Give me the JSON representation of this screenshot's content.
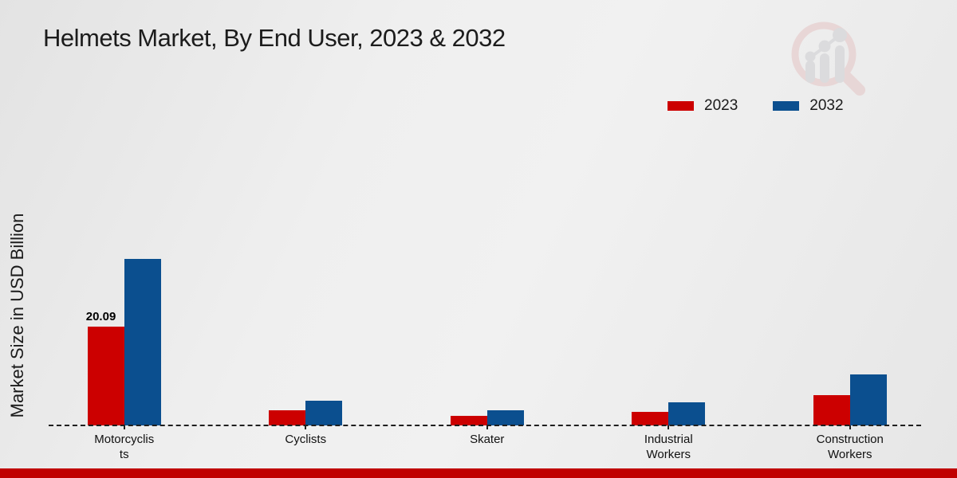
{
  "title": "Helmets Market, By End User, 2023 & 2032",
  "y_axis_label": "Market Size in USD Billion",
  "legend": {
    "items": [
      {
        "label": "2023",
        "color": "#cc0000"
      },
      {
        "label": "2032",
        "color": "#0b4f8f"
      }
    ]
  },
  "watermark": {
    "name": "magnifier-bar-chart-logo",
    "ring_color": "#e3bcbc",
    "bar_color": "#c7c7cb"
  },
  "footer": {
    "color": "#c00000"
  },
  "chart_data": {
    "type": "bar",
    "title": "Helmets Market, By End User, 2023 & 2032",
    "xlabel": "",
    "ylabel": "Market Size in USD Billion",
    "ylim": [
      0,
      36
    ],
    "grid": false,
    "legend_position": "top-right",
    "baseline_style": "dashed",
    "categories": [
      "Motorcyclists",
      "Cyclists",
      "Skater",
      "Industrial Workers",
      "Construction Workers"
    ],
    "category_display": [
      "Motorcyclis\nts",
      "Cyclists",
      "Skater",
      "Industrial\nWorkers",
      "Construction\nWorkers"
    ],
    "series": [
      {
        "name": "2023",
        "color": "#cc0000",
        "values": [
          20.09,
          3.0,
          1.9,
          2.8,
          6.1
        ],
        "bar_labels": [
          "20.09",
          "",
          "",
          "",
          ""
        ]
      },
      {
        "name": "2032",
        "color": "#0b4f8f",
        "values": [
          33.9,
          5.1,
          3.0,
          4.7,
          10.3
        ],
        "bar_labels": [
          "",
          "",
          "",
          "",
          ""
        ]
      }
    ]
  }
}
